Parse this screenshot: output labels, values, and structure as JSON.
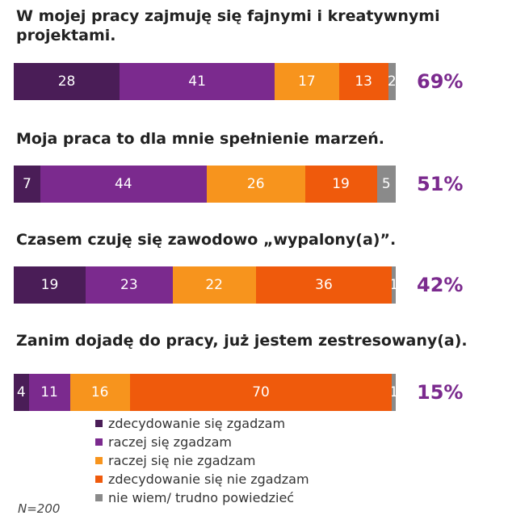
{
  "chart_data": {
    "type": "bar",
    "orientation": "horizontal",
    "stacked": true,
    "grid": false,
    "legend_position": "bottom",
    "series": [
      {
        "name": "zdecydowanie się zgadzam",
        "color": "#4a1d57"
      },
      {
        "name": "raczej się zgadzam",
        "color": "#7b2a8e"
      },
      {
        "name": "raczej się nie zgadzam",
        "color": "#f7941d"
      },
      {
        "name": "zdecydowanie się nie zgadzam",
        "color": "#ef5a0c"
      },
      {
        "name": "nie wiem/ trudno powiedzieć",
        "color": "#8a8a8a"
      }
    ],
    "rows": [
      {
        "question": "W mojej pracy zajmuję się fajnymi i kreatywnymi projektami.",
        "values": [
          28,
          41,
          17,
          13,
          2
        ],
        "total": "69%"
      },
      {
        "question": "Moja praca to dla mnie spełnienie marzeń.",
        "values": [
          7,
          44,
          26,
          19,
          5
        ],
        "total": "51%"
      },
      {
        "question": "Czasem czuję się zawodowo „wypalony(a)”.",
        "values": [
          19,
          23,
          22,
          36,
          1
        ],
        "total": "42%"
      },
      {
        "question": "Zanim dojadę do pracy, już jestem zestresowany(a).",
        "values": [
          4,
          11,
          16,
          70,
          1
        ],
        "total": "15%"
      }
    ]
  },
  "note": "N=200"
}
